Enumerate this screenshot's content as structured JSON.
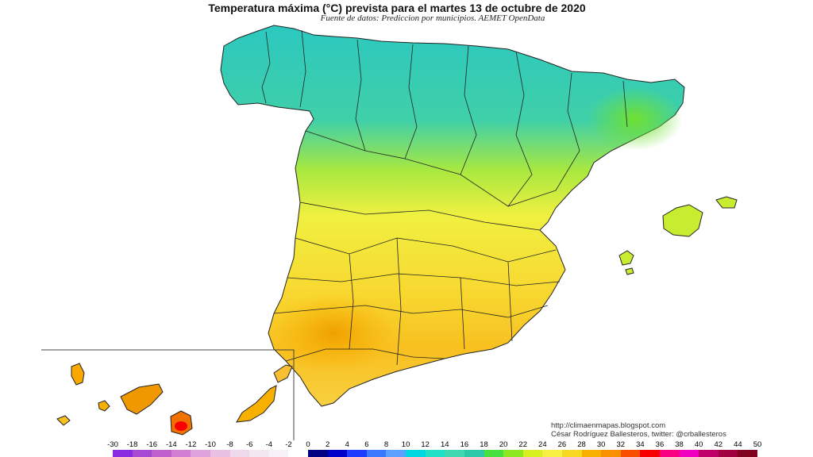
{
  "title": "Temperatura máxima (°C) prevista para el martes 13 de octubre de 2020",
  "subtitle": "Fuente de datos: Prediccion por municipios. AEMET OpenData",
  "credits": {
    "url": "http://climaenmapas.blogspot.com",
    "author": "César Rodríguez Ballesteros, twitter: @crballesteros"
  },
  "legend": {
    "ticks": [
      "-30",
      "-18",
      "-16",
      "-14",
      "-12",
      "-10",
      "-8",
      "-6",
      "-4",
      "-2",
      "0",
      "2",
      "4",
      "6",
      "8",
      "10",
      "12",
      "14",
      "16",
      "18",
      "20",
      "22",
      "24",
      "26",
      "28",
      "30",
      "32",
      "34",
      "36",
      "38",
      "40",
      "42",
      "44",
      "50"
    ],
    "colors": [
      "#8a2be2",
      "#a64ad6",
      "#c060cf",
      "#d27ed2",
      "#e0a2dc",
      "#e7c0e4",
      "#eed8ec",
      "#f3e8f2",
      "#f8f2f8",
      "#ffffff",
      "#000080",
      "#0000c8",
      "#1e3cff",
      "#3a78ff",
      "#5aa0ff",
      "#00d8e0",
      "#20e0c8",
      "#40d8b0",
      "#2cc8a8",
      "#48e040",
      "#8ce820",
      "#d8f020",
      "#f8f040",
      "#f8d820",
      "#f8b000",
      "#f89000",
      "#f85000",
      "#f80000",
      "#f80080",
      "#f000c0",
      "#c0006a",
      "#a00040",
      "#800020"
    ]
  },
  "regions": {
    "peninsula": "Península Ibérica",
    "balearics": "Islas Baleares",
    "canaries": "Islas Canarias"
  }
}
